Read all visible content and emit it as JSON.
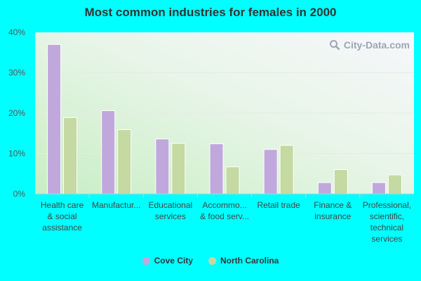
{
  "watermark": "City-Data.com",
  "chart_data": {
    "type": "bar",
    "title": "Most common industries for females in 2000",
    "categories": [
      [
        "Health care",
        "& social",
        "assistance"
      ],
      [
        "Manufactur..."
      ],
      [
        "Educational",
        "services"
      ],
      [
        "Accommo...",
        "& food serv..."
      ],
      [
        "Retail trade"
      ],
      [
        "Finance &",
        "insurance"
      ],
      [
        "Professional,",
        "scientific,",
        "technical",
        "services"
      ]
    ],
    "series": [
      {
        "name": "Cove City",
        "color": "#c0a8dc",
        "values": [
          37.0,
          20.6,
          13.6,
          12.4,
          11.0,
          2.8,
          2.8
        ]
      },
      {
        "name": "North Carolina",
        "color": "#c5d9a3",
        "values": [
          18.9,
          15.9,
          12.5,
          6.7,
          12.0,
          6.0,
          4.7
        ]
      }
    ],
    "y_ticks": [
      "0%",
      "10%",
      "20%",
      "30%",
      "40%"
    ],
    "ylim": [
      0,
      40
    ],
    "grid": true,
    "legend_position": "bottom-center"
  }
}
